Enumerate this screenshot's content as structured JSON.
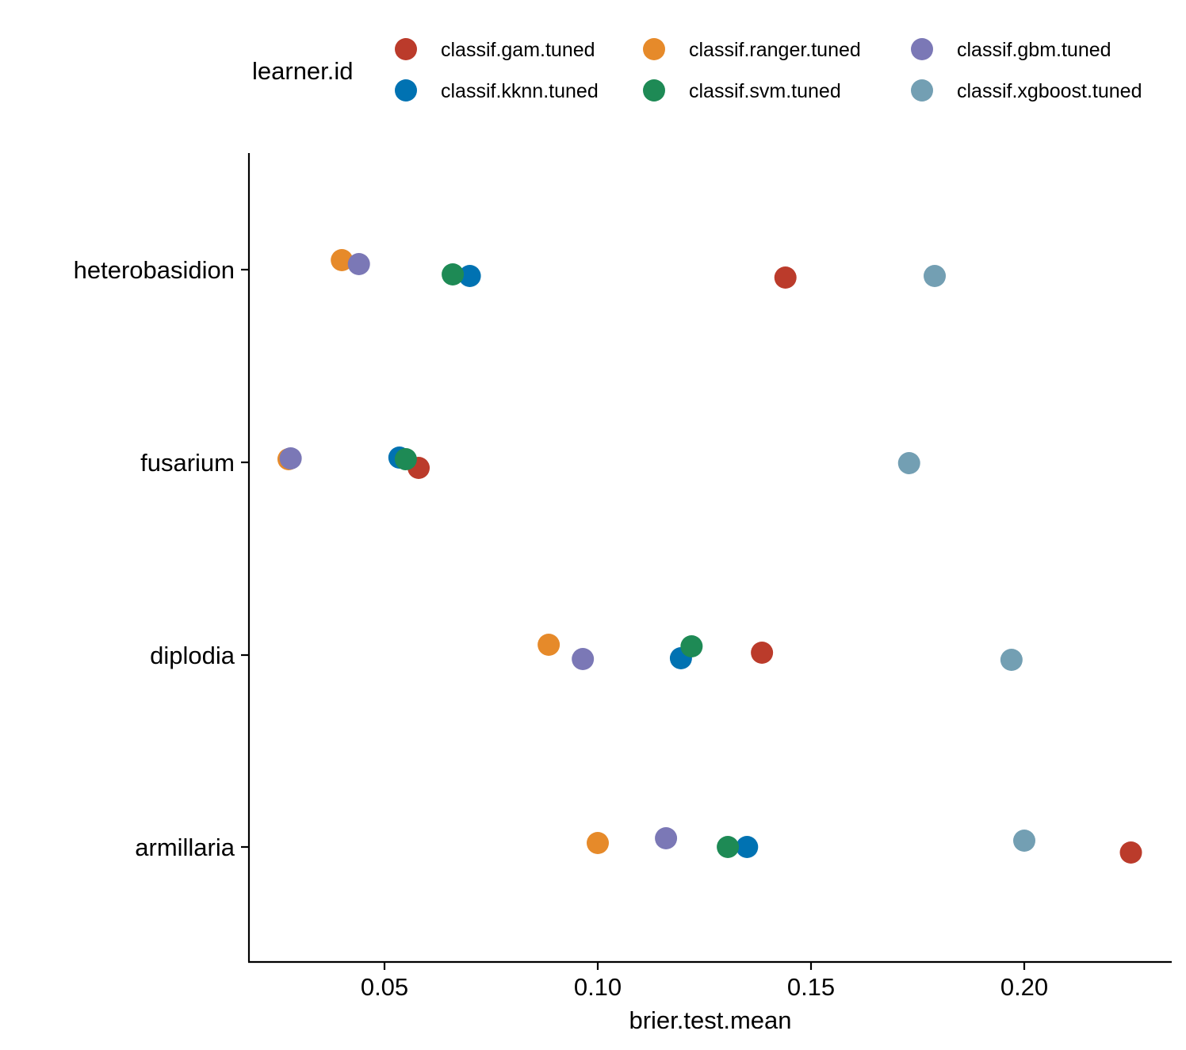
{
  "chart_data": {
    "type": "scatter",
    "title": "",
    "xlabel": "brier.test.mean",
    "ylabel": "",
    "xlim": [
      0.018,
      0.235
    ],
    "x_ticks": [
      {
        "value": 0.05,
        "label": "0.05"
      },
      {
        "value": 0.1,
        "label": "0.10"
      },
      {
        "value": 0.15,
        "label": "0.15"
      },
      {
        "value": 0.2,
        "label": "0.20"
      }
    ],
    "categories": [
      "heterobasidion",
      "fusarium",
      "diplodia",
      "armillaria"
    ],
    "grid": false,
    "legend": {
      "title": "learner.id",
      "position": "top"
    },
    "series": [
      {
        "name": "classif.gam.tuned",
        "color": "#BB3B2B",
        "points": [
          {
            "category": "heterobasidion",
            "x": 0.144
          },
          {
            "category": "fusarium",
            "x": 0.058
          },
          {
            "category": "diplodia",
            "x": 0.1385
          },
          {
            "category": "armillaria",
            "x": 0.225
          }
        ]
      },
      {
        "name": "classif.kknn.tuned",
        "color": "#0072B2",
        "points": [
          {
            "category": "heterobasidion",
            "x": 0.07
          },
          {
            "category": "fusarium",
            "x": 0.0535
          },
          {
            "category": "diplodia",
            "x": 0.1195
          },
          {
            "category": "armillaria",
            "x": 0.135
          }
        ]
      },
      {
        "name": "classif.ranger.tuned",
        "color": "#E68A2A",
        "points": [
          {
            "category": "heterobasidion",
            "x": 0.04
          },
          {
            "category": "fusarium",
            "x": 0.0275
          },
          {
            "category": "diplodia",
            "x": 0.0885
          },
          {
            "category": "armillaria",
            "x": 0.1
          }
        ]
      },
      {
        "name": "classif.svm.tuned",
        "color": "#1E8A55",
        "points": [
          {
            "category": "heterobasidion",
            "x": 0.066
          },
          {
            "category": "fusarium",
            "x": 0.055
          },
          {
            "category": "diplodia",
            "x": 0.122
          },
          {
            "category": "armillaria",
            "x": 0.1305
          }
        ]
      },
      {
        "name": "classif.gbm.tuned",
        "color": "#7B78B6",
        "points": [
          {
            "category": "heterobasidion",
            "x": 0.044
          },
          {
            "category": "fusarium",
            "x": 0.028
          },
          {
            "category": "diplodia",
            "x": 0.0965
          },
          {
            "category": "armillaria",
            "x": 0.116
          }
        ]
      },
      {
        "name": "classif.xgboost.tuned",
        "color": "#739FB3",
        "points": [
          {
            "category": "heterobasidion",
            "x": 0.179
          },
          {
            "category": "fusarium",
            "x": 0.173
          },
          {
            "category": "diplodia",
            "x": 0.197
          },
          {
            "category": "armillaria",
            "x": 0.2
          }
        ]
      }
    ]
  }
}
